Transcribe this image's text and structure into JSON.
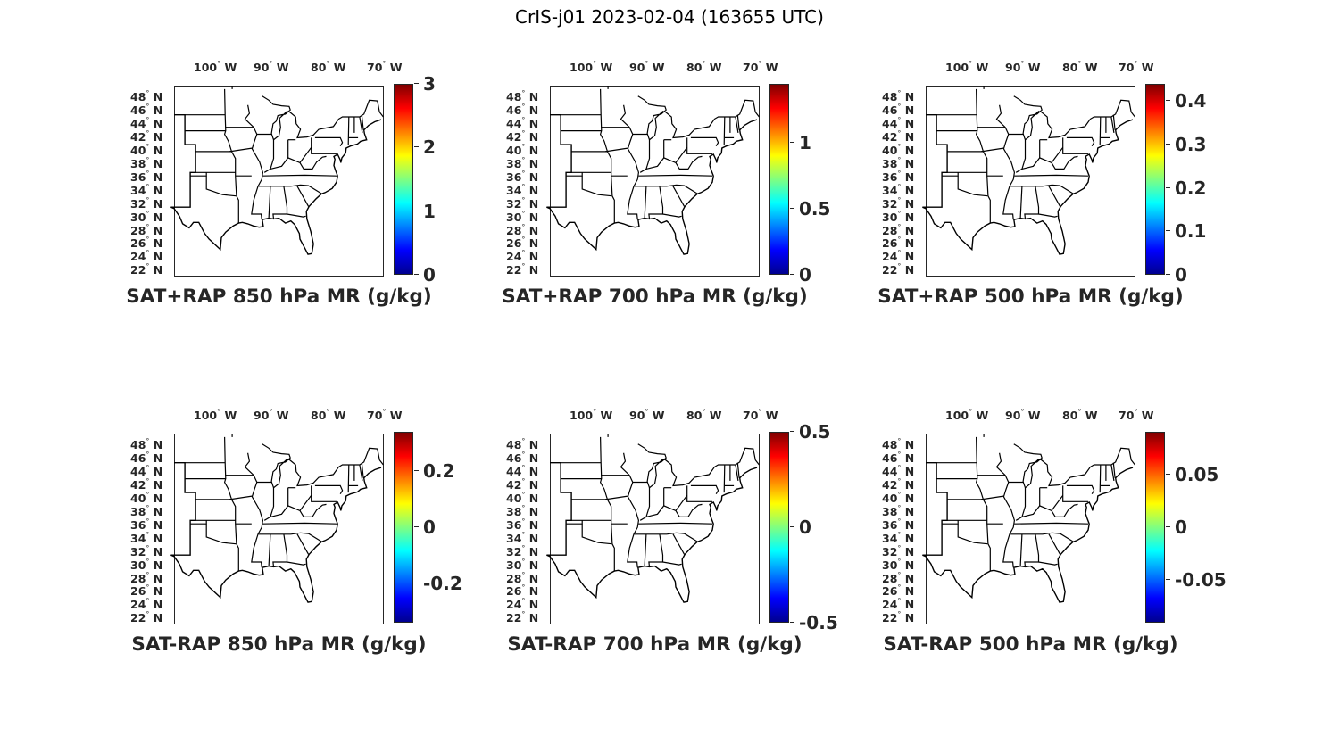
{
  "title": "CrIS-j01 2023-02-04 (163655 UTC)",
  "lon_ticks": [
    "100",
    "90",
    "80",
    "70"
  ],
  "lon_suffix": "W",
  "lat_ticks": [
    "48",
    "46",
    "44",
    "42",
    "40",
    "38",
    "36",
    "34",
    "32",
    "30",
    "28",
    "26",
    "24",
    "22"
  ],
  "lat_suffix": "N",
  "degree_symbol": "°",
  "colormap": "jet",
  "panels": [
    {
      "title": "SAT+RAP 850 hPa MR (g/kg)",
      "colorbar": {
        "min": 0,
        "max": 3,
        "ticks": [
          "3",
          "2",
          "1",
          "0"
        ],
        "tick_values": [
          3,
          2,
          1,
          0
        ]
      }
    },
    {
      "title": "SAT+RAP 700 hPa MR (g/kg)",
      "colorbar": {
        "min": 0,
        "max": 1.45,
        "ticks": [
          "1",
          "0.5",
          "0"
        ],
        "tick_values": [
          1,
          0.5,
          0
        ]
      }
    },
    {
      "title": "SAT+RAP 500 hPa MR (g/kg)",
      "colorbar": {
        "min": 0,
        "max": 0.44,
        "ticks": [
          "0.4",
          "0.3",
          "0.2",
          "0.1",
          "0"
        ],
        "tick_values": [
          0.4,
          0.3,
          0.2,
          0.1,
          0
        ]
      }
    },
    {
      "title": "SAT-RAP 850 hPa MR (g/kg)",
      "colorbar": {
        "min": -0.34,
        "max": 0.34,
        "ticks": [
          "0.2",
          "0",
          "-0.2"
        ],
        "tick_values": [
          0.2,
          0,
          -0.2
        ]
      }
    },
    {
      "title": "SAT-RAP 700 hPa MR (g/kg)",
      "colorbar": {
        "min": -0.5,
        "max": 0.5,
        "ticks": [
          "0.5",
          "0",
          "-0.5"
        ],
        "tick_values": [
          0.5,
          0,
          -0.5
        ]
      }
    },
    {
      "title": "SAT-RAP 500 hPa MR (g/kg)",
      "colorbar": {
        "min": -0.09,
        "max": 0.09,
        "ticks": [
          "0.05",
          "0",
          "-0.05"
        ],
        "tick_values": [
          0.05,
          0,
          -0.05
        ]
      }
    }
  ]
}
